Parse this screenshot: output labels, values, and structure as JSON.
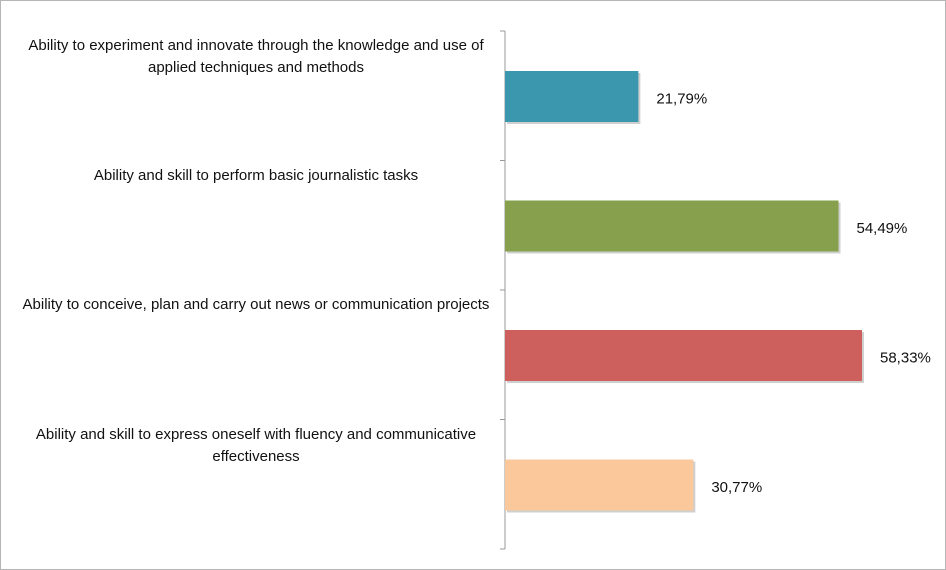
{
  "chart_data": {
    "type": "bar",
    "orientation": "horizontal",
    "categories": [
      "Ability to experiment and innovate through the knowledge and use of applied techniques and methods",
      "Ability and skill to perform basic journalistic tasks",
      "Ability to conceive, plan and carry out news or communication projects",
      "Ability and skill to express oneself with fluency and communicative effectiveness"
    ],
    "values": [
      21.79,
      54.49,
      58.33,
      30.77
    ],
    "value_labels": [
      "21,79%",
      "54,49%",
      "58,33%",
      "30,77%"
    ],
    "colors": [
      "#3a97ad",
      "#86a04e",
      "#cd605c",
      "#fbc89c"
    ]
  }
}
